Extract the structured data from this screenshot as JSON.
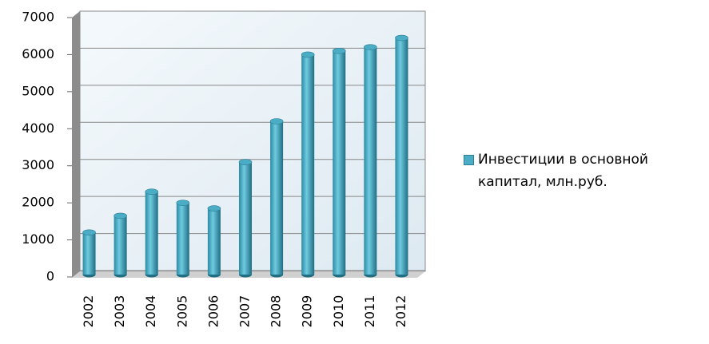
{
  "chart_data": {
    "type": "bar",
    "categories": [
      "2002",
      "2003",
      "2004",
      "2005",
      "2006",
      "2007",
      "2008",
      "2009",
      "2010",
      "2011",
      "2012"
    ],
    "series": [
      {
        "name": "Инвестиции в основной капитал, млн.руб.",
        "color": "#4bacc6",
        "values": [
          1200,
          1650,
          2300,
          2000,
          1850,
          3100,
          4200,
          6000,
          6100,
          6200,
          6450
        ]
      }
    ],
    "ylim": [
      0,
      7000
    ],
    "yticks": [
      0,
      1000,
      2000,
      3000,
      4000,
      5000,
      6000,
      7000
    ],
    "grid": true,
    "legend": "right"
  }
}
